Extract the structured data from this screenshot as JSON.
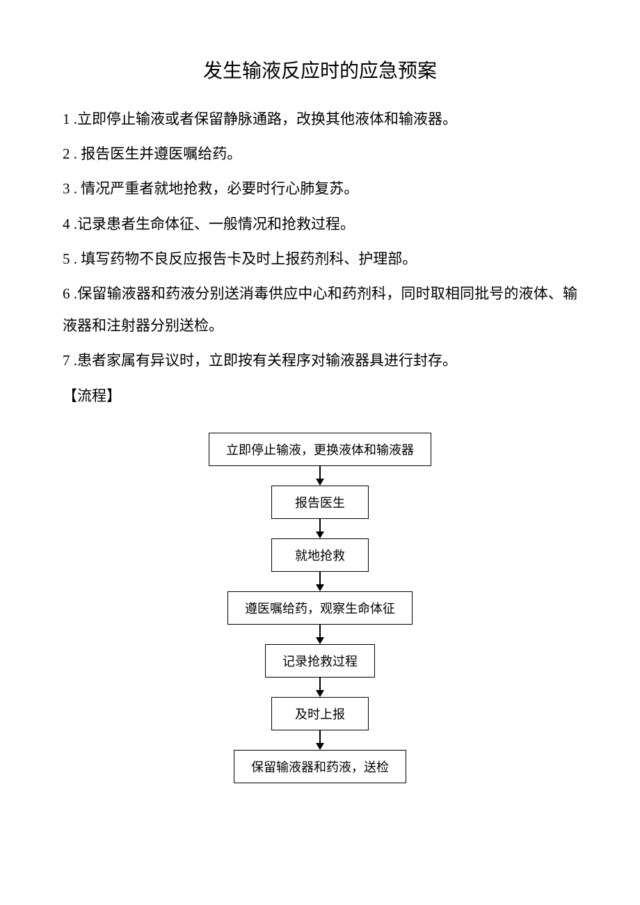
{
  "document": {
    "title": "发生输液反应时的应急预案",
    "items": [
      "1 .立即停止输液或者保留静脉通路，改换其他液体和输液器。",
      "2 . 报告医生并遵医嘱给药。",
      "3 . 情况严重者就地抢救，必要时行心肺复苏。",
      "4 .记录患者生命体征、一般情况和抢救过程。",
      "5 . 填写药物不良反应报告卡及时上报药剂科、护理部。",
      "6 .保留输液器和药液分别送消毒供应中心和药剂科，同时取相同批号的液体、输液器和注射器分别送检。",
      "7 .患者家属有异议时，立即按有关程序对输液器具进行封存。"
    ],
    "section_label": "【流程】"
  },
  "flowchart": {
    "type": "flowchart",
    "background_color": "#ffffff",
    "node_border_color": "#000000",
    "node_text_color": "#000000",
    "arrow_color": "#000000",
    "node_fontsize": 18,
    "nodes": [
      "立即停止输液，更换液体和输液器",
      "报告医生",
      "就地抢救",
      "遵医嘱给药，观察生命体征",
      "记录抢救过程",
      "及时上报",
      "保留输液器和药液，送检"
    ]
  }
}
